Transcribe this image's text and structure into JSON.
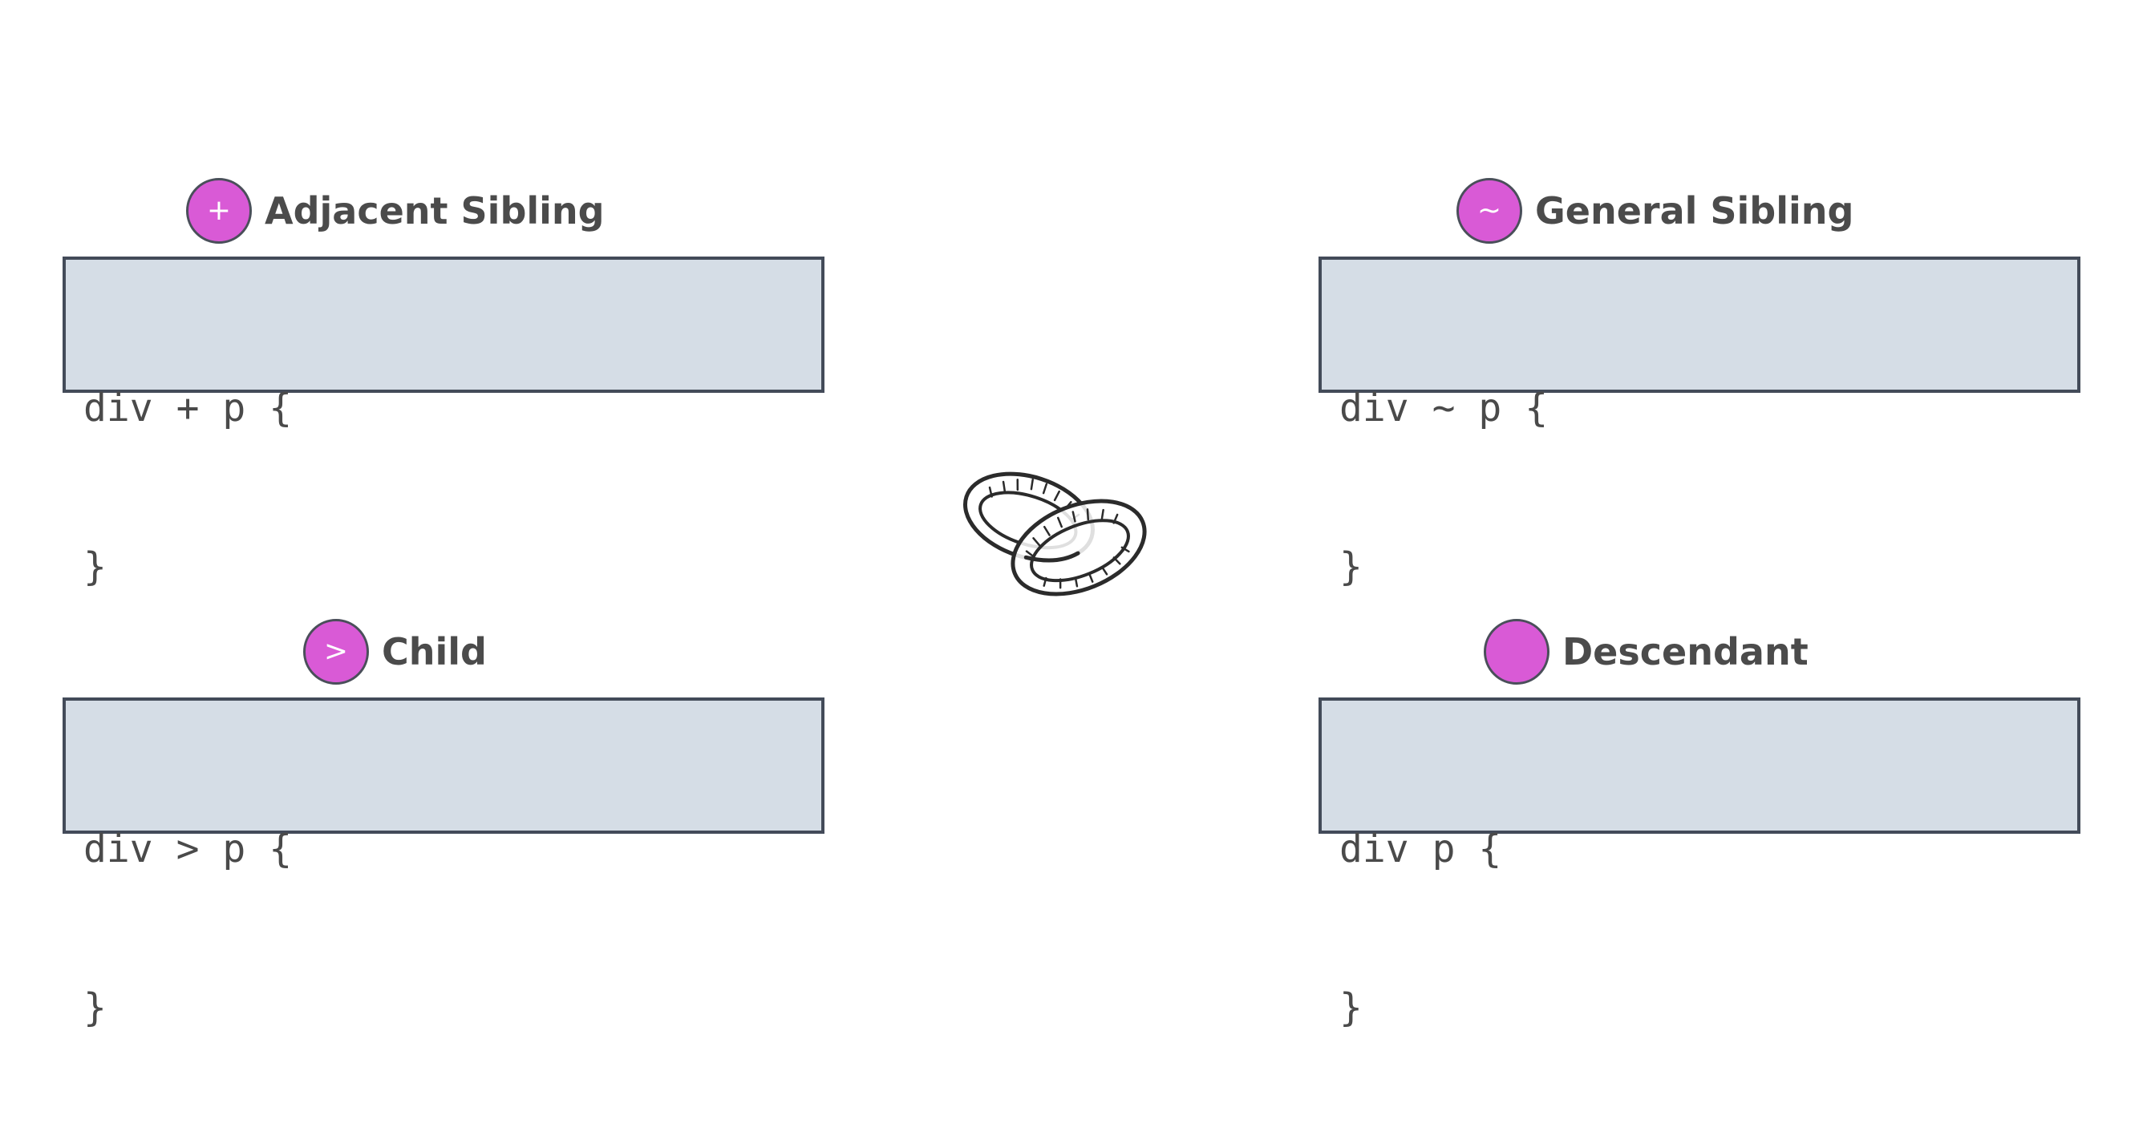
{
  "panels": {
    "adjacent": {
      "symbol": "+",
      "title": "Adjacent Sibling",
      "code_line1": "div + p {",
      "code_line2": "}"
    },
    "general": {
      "symbol": "~",
      "title": "General Sibling",
      "code_line1": "div ~ p {",
      "code_line2": "}"
    },
    "child": {
      "symbol": ">",
      "title": "Child",
      "code_line1": "div > p {",
      "code_line2": "}"
    },
    "descendant": {
      "symbol": "",
      "title": "Descendant",
      "code_line1": "div p {",
      "code_line2": "}"
    }
  },
  "center_icon": "interlocked-rings-icon",
  "colors": {
    "badge": "#d95ad6",
    "code_background": "#d5dde6",
    "code_border": "#434b59",
    "label_text": "#4b4b4b"
  }
}
